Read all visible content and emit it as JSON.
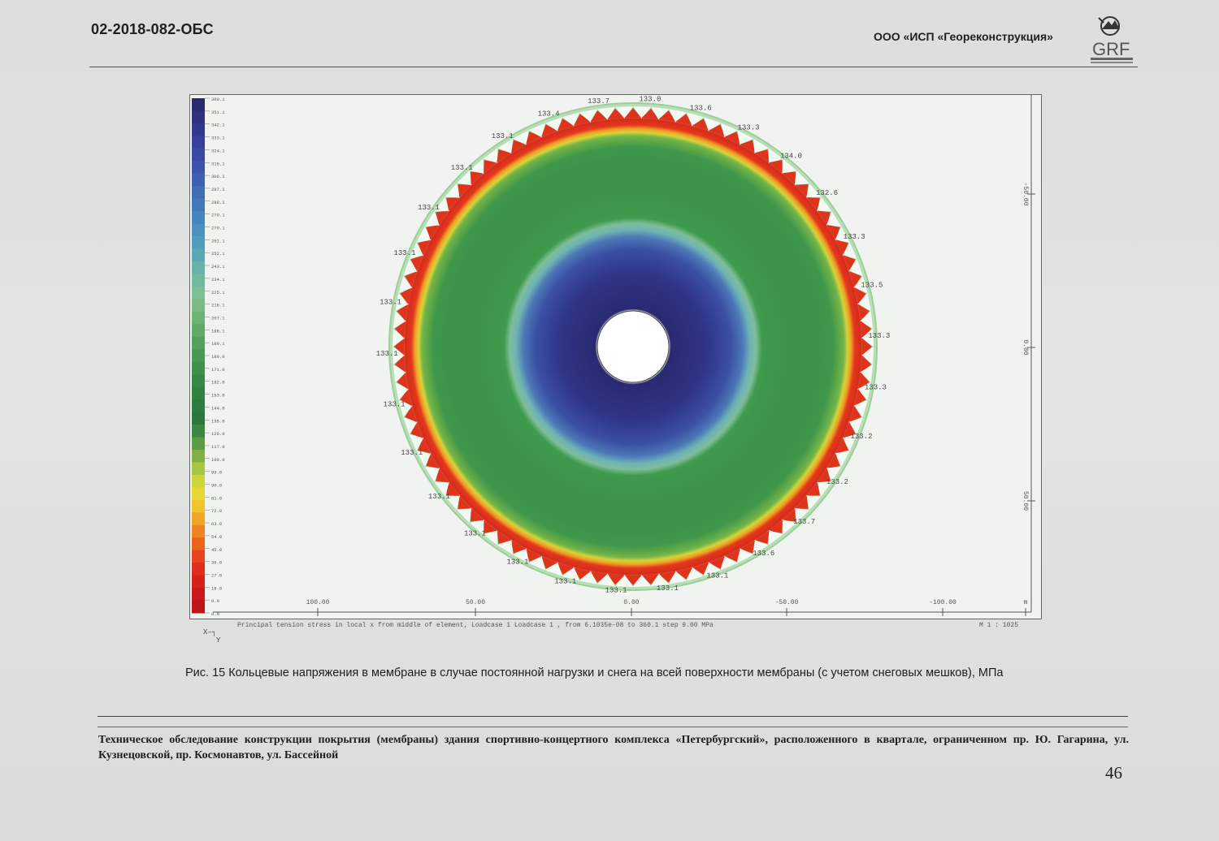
{
  "header": {
    "doc_code": "02-2018-082-ОБС",
    "company": "ООО «ИСП «Георекон­струкция»",
    "logo_text": "GRF"
  },
  "figure": {
    "legend_values": [
      "360.1",
      "351.1",
      "342.1",
      "333.1",
      "324.1",
      "315.1",
      "306.1",
      "297.1",
      "288.1",
      "279.1",
      "270.1",
      "261.1",
      "252.1",
      "243.1",
      "234.1",
      "225.1",
      "216.1",
      "207.1",
      "198.1",
      "189.1",
      "180.0",
      "171.0",
      "162.0",
      "153.0",
      "144.0",
      "135.0",
      "126.0",
      "117.0",
      "108.0",
      "99.0",
      "90.0",
      "81.0",
      "72.0",
      "63.0",
      "54.0",
      "45.0",
      "36.0",
      "27.0",
      "18.0",
      "9.0",
      "0.0"
    ],
    "legend_colors": [
      "#2b2a6e",
      "#2f3180",
      "#33388f",
      "#37409c",
      "#3a49a6",
      "#3d54ad",
      "#3f60b2",
      "#416db7",
      "#4379bb",
      "#4685bd",
      "#4a91bd",
      "#509dbb",
      "#5aa8b6",
      "#66b2ad",
      "#72b9a2",
      "#7fbf96",
      "#7bba86",
      "#6fb276",
      "#62a967",
      "#55a05b",
      "#4a9852",
      "#3f904a",
      "#378845",
      "#318141",
      "#2e7b3e",
      "#2d773c",
      "#3c8840",
      "#5a9c42",
      "#7eb143",
      "#a6c541",
      "#cbd53a",
      "#e6d733",
      "#efc42c",
      "#f0a526",
      "#ee8322",
      "#eb621f",
      "#e6441d",
      "#df2e1c",
      "#d5211b",
      "#c9191a",
      "#bd1519"
    ],
    "ring_labels": [
      "133.4",
      "133.7",
      "133.0",
      "133.6",
      "133.3",
      "134.0",
      "132.6",
      "133.3",
      "133.5",
      "133.3",
      "133.3",
      "133.2",
      "133.2",
      "133.7",
      "133.6",
      "133.1",
      "133.1",
      "133.1",
      "133.1",
      "133.1",
      "133.1",
      "133.1",
      "133.1",
      "133.1",
      "133.1",
      "133.1",
      "133.1",
      "133.1",
      "133.1",
      "133.1"
    ],
    "x_ticks": [
      "100.00",
      "50.00",
      "0.00",
      "-50.00",
      "-100.00",
      "m"
    ],
    "y_ticks": [
      "-50.00",
      "0.00",
      "50.00"
    ],
    "footer": "Principal tension stress in local x from middle of element, Loadcase 1 Loadcase 1   , from  6.1035e-08 to 360.1 step 9.00 MPa",
    "scale": "M 1 : 1025",
    "axis_x": "X",
    "axis_y": "Y"
  },
  "caption": "Рис. 15 Кольцевые напряжения в мембране в случае постоянной нагрузки и снега на всей поверхности мембраны (с учетом снеговых мешков), МПа",
  "footer": {
    "text": "Техническое обследование конструкции покрытия (мембраны) здания спортивно-концертного комплекса «Петербургский», расположенного в квартале, ограниченном пр. Ю. Гагарина, ул. Кузнецовской, пр. Космонавтов, ул. Бассейной",
    "page_number": "46"
  }
}
